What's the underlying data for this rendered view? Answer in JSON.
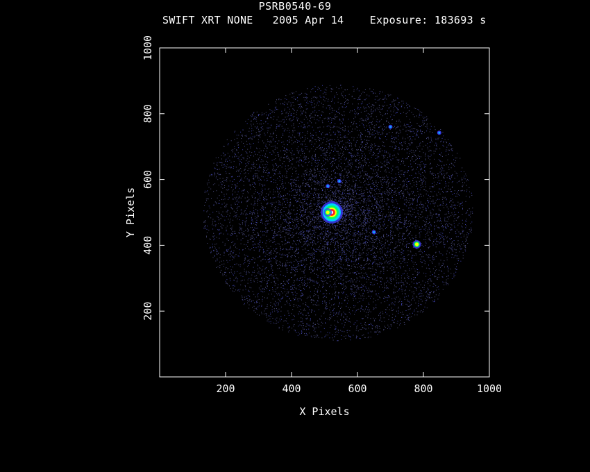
{
  "header": {
    "title": "PSRB0540-69",
    "instrument": "SWIFT XRT NONE",
    "date": "2005 Apr 14",
    "exposure": "Exposure: 183693 s"
  },
  "chart_data": {
    "type": "scatter",
    "title": "PSRB0540-69",
    "xlabel": "X Pixels",
    "ylabel": "Y Pixels",
    "xlim": [
      0,
      1000
    ],
    "ylim": [
      0,
      1000
    ],
    "xticks": [
      200,
      400,
      600,
      800,
      1000
    ],
    "xtick_labels": [
      "200",
      "400",
      "600",
      "800",
      "1000"
    ],
    "yticks": [
      200,
      400,
      600,
      800,
      1000
    ],
    "ytick_labels": [
      "200",
      "400",
      "600",
      "800",
      "1000"
    ],
    "grid": false,
    "background": "#000000",
    "sources": [
      {
        "x": 522,
        "y": 500,
        "intensity": "peak"
      },
      {
        "x": 780,
        "y": 403,
        "intensity": "bright"
      },
      {
        "x": 510,
        "y": 500,
        "intensity": "bright"
      },
      {
        "x": 545,
        "y": 595,
        "intensity": "faint"
      },
      {
        "x": 650,
        "y": 440,
        "intensity": "faint"
      },
      {
        "x": 510,
        "y": 580,
        "intensity": "faint"
      },
      {
        "x": 848,
        "y": 742,
        "intensity": "faint"
      },
      {
        "x": 700,
        "y": 760,
        "intensity": "faint"
      }
    ],
    "diffuse_emission": {
      "center": [
        540,
        500
      ],
      "radius": 410,
      "color": "#4a4fd0"
    },
    "colormap": [
      "#2a2a90",
      "#3c3cff",
      "#00d0ff",
      "#00ff60",
      "#ffff00",
      "#ff2020",
      "#ffffff"
    ]
  }
}
